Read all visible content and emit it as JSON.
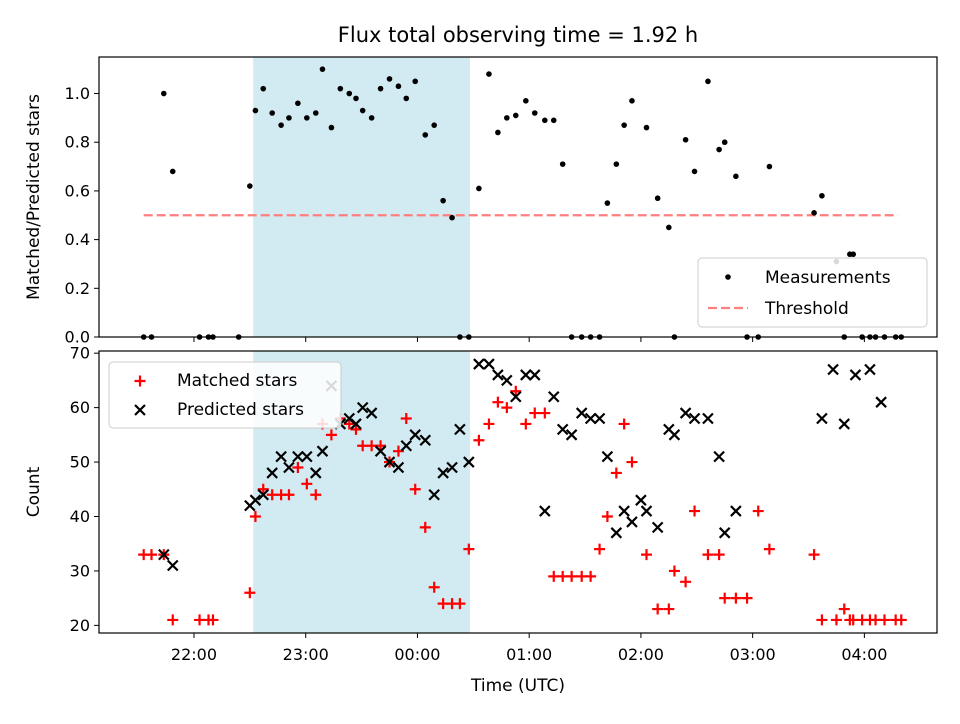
{
  "chart_data": {
    "type": "scatter",
    "title": "Flux total observing time = 1.92 h",
    "xlabel": "Time (UTC)",
    "x_unit": "hours, where 0 = 00:00 UTC (midnight)",
    "xlim": [
      -2.85,
      4.65
    ],
    "xticks": [
      {
        "v": -2,
        "label": "22:00"
      },
      {
        "v": -1,
        "label": "23:00"
      },
      {
        "v": 0,
        "label": "00:00"
      },
      {
        "v": 1,
        "label": "01:00"
      },
      {
        "v": 2,
        "label": "02:00"
      },
      {
        "v": 3,
        "label": "03:00"
      },
      {
        "v": 4,
        "label": "04:00"
      }
    ],
    "shaded_region": {
      "x": [
        -1.47,
        0.47
      ],
      "color": "#add8e6"
    },
    "panels": [
      {
        "id": "ratio",
        "ylabel": "Matched/Predicted stars",
        "ylim": [
          0,
          1.15
        ],
        "yticks": [
          "0.0",
          "0.2",
          "0.4",
          "0.6",
          "0.8",
          "1.0"
        ],
        "legend": {
          "position": "lower-right",
          "entries": [
            "Measurements",
            "Threshold"
          ]
        },
        "threshold": {
          "y": 0.5,
          "x": [
            -2.45,
            4.3
          ],
          "color": "#ff7f7f",
          "style": "dashed"
        },
        "series": [
          {
            "name": "Measurements",
            "marker": "dot",
            "color": "#000000",
            "x": [
              -2.45,
              -2.38,
              -2.27,
              -2.19,
              -1.95,
              -1.87,
              -1.83,
              -1.6,
              -1.5,
              -1.45,
              -1.38,
              -1.3,
              -1.22,
              -1.15,
              -1.07,
              -0.99,
              -0.91,
              -0.85,
              -0.77,
              -0.69,
              -0.61,
              -0.55,
              -0.49,
              -0.41,
              -0.33,
              -0.25,
              -0.17,
              -0.1,
              -0.02,
              0.07,
              0.15,
              0.23,
              0.31,
              0.38,
              0.46,
              0.55,
              0.64,
              0.72,
              0.8,
              0.88,
              0.97,
              1.05,
              1.14,
              1.22,
              1.3,
              1.38,
              1.47,
              1.55,
              1.63,
              1.7,
              1.78,
              1.85,
              1.92,
              2.05,
              2.15,
              2.25,
              2.3,
              2.4,
              2.48,
              2.6,
              2.7,
              2.75,
              2.85,
              2.95,
              3.05,
              3.15,
              3.55,
              3.62,
              3.75,
              3.82,
              3.87,
              3.9,
              3.98,
              4.05,
              4.1,
              4.18,
              4.28,
              4.33
            ],
            "y": [
              0,
              0,
              1.0,
              0.68,
              0,
              0,
              0,
              0,
              0.62,
              0.93,
              1.02,
              0.92,
              0.87,
              0.9,
              0.96,
              0.9,
              0.92,
              1.1,
              0.86,
              1.02,
              1.0,
              0.98,
              0.93,
              0.9,
              1.02,
              1.06,
              1.03,
              0.98,
              1.05,
              0.83,
              0.87,
              0.56,
              0.49,
              0,
              0,
              0.61,
              1.08,
              0.84,
              0.9,
              0.91,
              0.97,
              0.92,
              0.89,
              0.89,
              0.71,
              0,
              0,
              0,
              0,
              0.55,
              0.71,
              0.87,
              0.97,
              0.86,
              0.57,
              0.45,
              0,
              0.81,
              0.68,
              1.05,
              0.77,
              0.8,
              0.66,
              0,
              0,
              0.7,
              0.51,
              0.58,
              0.31,
              0,
              0.34,
              0.34,
              0,
              0,
              0,
              0,
              0,
              0
            ]
          }
        ]
      },
      {
        "id": "counts",
        "ylabel": "Count",
        "ylim": [
          18.6,
          70.4
        ],
        "yticks": [
          "20",
          "30",
          "40",
          "50",
          "60",
          "70"
        ],
        "legend": {
          "position": "top-left",
          "entries": [
            "Matched stars",
            "Predicted stars"
          ]
        },
        "series": [
          {
            "name": "Matched stars",
            "marker": "plus",
            "color": "#ff0000",
            "x": [
              -2.45,
              -2.38,
              -2.27,
              -2.19,
              -1.95,
              -1.87,
              -1.83,
              -1.5,
              -1.45,
              -1.38,
              -1.3,
              -1.22,
              -1.15,
              -1.07,
              -0.99,
              -0.91,
              -0.85,
              -0.77,
              -0.69,
              -0.61,
              -0.55,
              -0.49,
              -0.41,
              -0.33,
              -0.25,
              -0.17,
              -0.1,
              -0.02,
              0.07,
              0.15,
              0.23,
              0.31,
              0.38,
              0.46,
              0.55,
              0.64,
              0.72,
              0.8,
              0.88,
              0.97,
              1.05,
              1.14,
              1.22,
              1.3,
              1.38,
              1.47,
              1.55,
              1.63,
              1.7,
              1.78,
              1.85,
              1.92,
              2.05,
              2.15,
              2.25,
              2.3,
              2.4,
              2.48,
              2.6,
              2.7,
              2.75,
              2.85,
              2.95,
              3.05,
              3.15,
              3.55,
              3.62,
              3.75,
              3.82,
              3.87,
              3.9,
              3.98,
              4.05,
              4.1,
              4.18,
              4.28,
              4.33
            ],
            "y": [
              33,
              33,
              33,
              21,
              21,
              21,
              21,
              26,
              40,
              45,
              44,
              44,
              44,
              49,
              46,
              44,
              57,
              55,
              58,
              57,
              56,
              53,
              53,
              53,
              50,
              52,
              58,
              45,
              38,
              27,
              24,
              24,
              24,
              34,
              54,
              57,
              61,
              60,
              63,
              57,
              59,
              59,
              29,
              29,
              29,
              29,
              29,
              34,
              40,
              48,
              57,
              50,
              33,
              23,
              23,
              30,
              28,
              41,
              33,
              33,
              25,
              25,
              25,
              41,
              34,
              33,
              21,
              21,
              23,
              21,
              21,
              21,
              21,
              21,
              21,
              21,
              21
            ]
          },
          {
            "name": "Predicted stars",
            "marker": "x",
            "color": "#000000",
            "x": [
              -2.27,
              -2.19,
              -1.5,
              -1.45,
              -1.38,
              -1.3,
              -1.22,
              -1.15,
              -1.07,
              -0.99,
              -0.91,
              -0.85,
              -0.77,
              -0.69,
              -0.61,
              -0.55,
              -0.49,
              -0.41,
              -0.33,
              -0.25,
              -0.17,
              -0.1,
              -0.02,
              0.07,
              0.15,
              0.23,
              0.31,
              0.38,
              0.46,
              0.55,
              0.64,
              0.72,
              0.8,
              0.88,
              0.97,
              1.05,
              1.14,
              1.22,
              1.3,
              1.38,
              1.47,
              1.55,
              1.63,
              1.7,
              1.78,
              1.85,
              1.92,
              2.0,
              2.05,
              2.15,
              2.25,
              2.3,
              2.4,
              2.48,
              2.6,
              2.7,
              2.75,
              2.85,
              3.62,
              3.72,
              3.82,
              3.92,
              4.05,
              4.15
            ],
            "y": [
              33,
              31,
              42,
              43,
              44,
              48,
              51,
              49,
              51,
              51,
              48,
              52,
              64,
              57,
              58,
              57,
              60,
              59,
              52,
              50,
              49,
              53,
              55,
              54,
              44,
              48,
              49,
              56,
              50,
              68,
              68,
              66,
              65,
              62,
              66,
              66,
              41,
              62,
              56,
              55,
              59,
              58,
              58,
              51,
              37,
              41,
              39,
              43,
              41,
              38,
              56,
              55,
              59,
              58,
              58,
              51,
              37,
              41,
              58,
              67,
              57,
              66,
              67,
              61
            ]
          }
        ]
      }
    ]
  }
}
